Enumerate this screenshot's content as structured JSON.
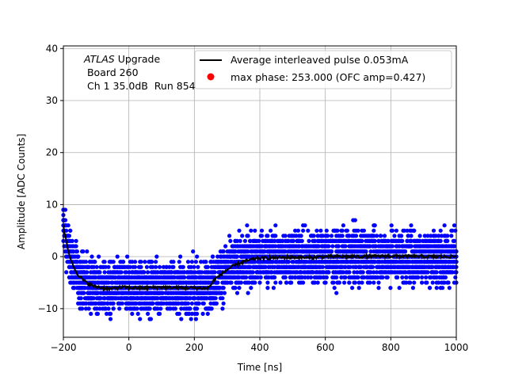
{
  "chart_data": {
    "type": "scatter",
    "title": "",
    "xlabel": "Time [ns]",
    "ylabel": "Amplitude [ADC Counts]",
    "xlim": [
      -200,
      1000
    ],
    "ylim": [
      -15.5,
      40.5
    ],
    "xticks": [
      -200,
      0,
      200,
      400,
      600,
      800,
      1000
    ],
    "xtick_labels": [
      "−200",
      "0",
      "200",
      "400",
      "600",
      "800",
      "1000"
    ],
    "yticks": [
      -10,
      0,
      10,
      20,
      30,
      40
    ],
    "ytick_labels": [
      "−10",
      "0",
      "10",
      "20",
      "30",
      "40"
    ],
    "grid": true,
    "legend_position": "top-right",
    "annotation": {
      "line1_italic": "ATLAS",
      "line1_rest": " Upgrade",
      "line2": " Board 260",
      "line3": " Ch 1 35.0dB  Run 854"
    },
    "series": [
      {
        "name": "Average interleaved pulse 0.053mA",
        "kind": "line",
        "color": "#000000",
        "x": [
          -200,
          -190,
          -180,
          -170,
          -160,
          -150,
          -140,
          -130,
          -120,
          -110,
          -100,
          -80,
          -60,
          -40,
          -20,
          0,
          50,
          100,
          150,
          200,
          240,
          250,
          260,
          280,
          300,
          320,
          340,
          360,
          380,
          400,
          450,
          500,
          550,
          600,
          700,
          800,
          900,
          1000
        ],
        "y": [
          6,
          2.5,
          0,
          -1.8,
          -3,
          -3.8,
          -4.5,
          -5,
          -5.3,
          -5.6,
          -5.8,
          -6,
          -6.2,
          -6,
          -5.9,
          -6,
          -6,
          -5.9,
          -6,
          -6,
          -6.1,
          -5.5,
          -4.5,
          -3.5,
          -2.5,
          -1.8,
          -1.2,
          -0.8,
          -0.5,
          -0.3,
          -0.2,
          -0.1,
          -0.2,
          0,
          0,
          0.1,
          0,
          0
        ],
        "points_scatter": "dense blue samples around the average, spread approximately ±7 ADC counts, integer-valued amplitudes",
        "scatter_color": "#0000ff",
        "scatter_spread": 7
      },
      {
        "name": "max phase: 253.000 (OFC amp=0.427)",
        "kind": "marker",
        "color": "#ff0000",
        "x": [],
        "y": []
      }
    ]
  }
}
